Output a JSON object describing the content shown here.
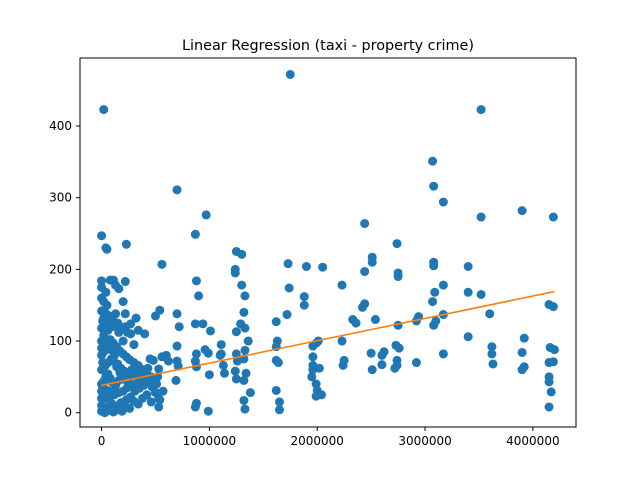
{
  "chart_data": {
    "type": "scatter",
    "title": "Linear Regression (taxi - property crime)",
    "xlabel": "",
    "ylabel": "",
    "xlim": [
      -200000,
      4400000
    ],
    "ylim": [
      -20,
      495
    ],
    "xticks": [
      0,
      1000000,
      2000000,
      3000000,
      4000000
    ],
    "xtick_labels": [
      "0",
      "1000000",
      "2000000",
      "3000000",
      "4000000"
    ],
    "yticks": [
      0,
      100,
      200,
      300,
      400
    ],
    "ytick_labels": [
      "0",
      "100",
      "200",
      "300",
      "400"
    ],
    "grid": false,
    "legend": "none",
    "colors": {
      "points": "#1f77b4",
      "line": "#ff7f0e"
    },
    "series": [
      {
        "kind": "scatter",
        "points": [
          [
            20000,
            423
          ],
          [
            3520000,
            423
          ],
          [
            1750000,
            472
          ],
          [
            700000,
            311
          ],
          [
            970000,
            276
          ],
          [
            3900000,
            282
          ],
          [
            4190000,
            273
          ],
          [
            3520000,
            273
          ],
          [
            3070000,
            351
          ],
          [
            3080000,
            316
          ],
          [
            3170000,
            294
          ],
          [
            2440000,
            264
          ],
          [
            0,
            247
          ],
          [
            870000,
            249
          ],
          [
            40000,
            230
          ],
          [
            50000,
            228
          ],
          [
            230000,
            235
          ],
          [
            1250000,
            225
          ],
          [
            1300000,
            221
          ],
          [
            1240000,
            200
          ],
          [
            1240000,
            195
          ],
          [
            2510000,
            217
          ],
          [
            2510000,
            210
          ],
          [
            2740000,
            236
          ],
          [
            2750000,
            195
          ],
          [
            2750000,
            190
          ],
          [
            1730000,
            208
          ],
          [
            1900000,
            204
          ],
          [
            2050000,
            203
          ],
          [
            2440000,
            197
          ],
          [
            3080000,
            210
          ],
          [
            3080000,
            205
          ],
          [
            3400000,
            204
          ],
          [
            3090000,
            168
          ],
          [
            3170000,
            178
          ],
          [
            3400000,
            168
          ],
          [
            3520000,
            165
          ],
          [
            560000,
            207
          ],
          [
            880000,
            184
          ],
          [
            1740000,
            174
          ],
          [
            1880000,
            162
          ],
          [
            2230000,
            178
          ],
          [
            1300000,
            178
          ],
          [
            1330000,
            163
          ],
          [
            2440000,
            152
          ],
          [
            2420000,
            147
          ],
          [
            3070000,
            155
          ],
          [
            3170000,
            137
          ],
          [
            4150000,
            151
          ],
          [
            4190000,
            148
          ],
          [
            0,
            184
          ],
          [
            0,
            175
          ],
          [
            80000,
            185
          ],
          [
            110000,
            185
          ],
          [
            130000,
            178
          ],
          [
            160000,
            173
          ],
          [
            220000,
            183
          ],
          [
            40000,
            168
          ],
          [
            20000,
            155
          ],
          [
            200000,
            155
          ],
          [
            540000,
            143
          ],
          [
            900000,
            163
          ],
          [
            1320000,
            140
          ],
          [
            1620000,
            127
          ],
          [
            1720000,
            137
          ],
          [
            1880000,
            150
          ],
          [
            1250000,
            113
          ],
          [
            1290000,
            124
          ],
          [
            1330000,
            118
          ],
          [
            1010000,
            114
          ],
          [
            940000,
            124
          ],
          [
            870000,
            124
          ],
          [
            720000,
            120
          ],
          [
            700000,
            138
          ],
          [
            500000,
            135
          ],
          [
            320000,
            132
          ],
          [
            270000,
            124
          ],
          [
            220000,
            138
          ],
          [
            130000,
            138
          ],
          [
            60000,
            136
          ],
          [
            0,
            142
          ],
          [
            2330000,
            130
          ],
          [
            2360000,
            125
          ],
          [
            2540000,
            130
          ],
          [
            2750000,
            122
          ],
          [
            2920000,
            128
          ],
          [
            2940000,
            134
          ],
          [
            3080000,
            122
          ],
          [
            3100000,
            128
          ],
          [
            3600000,
            138
          ],
          [
            3400000,
            106
          ],
          [
            3920000,
            104
          ],
          [
            3900000,
            84
          ],
          [
            3920000,
            64
          ],
          [
            3900000,
            60
          ],
          [
            4160000,
            91
          ],
          [
            4200000,
            88
          ],
          [
            4150000,
            70
          ],
          [
            4190000,
            71
          ],
          [
            4150000,
            50
          ],
          [
            4150000,
            43
          ],
          [
            4170000,
            29
          ],
          [
            4150000,
            8
          ],
          [
            3620000,
            92
          ],
          [
            3620000,
            82
          ],
          [
            3630000,
            68
          ],
          [
            3170000,
            82
          ],
          [
            2920000,
            70
          ],
          [
            2730000,
            94
          ],
          [
            2760000,
            90
          ],
          [
            2740000,
            73
          ],
          [
            2740000,
            66
          ],
          [
            2720000,
            62
          ],
          [
            2620000,
            85
          ],
          [
            2600000,
            80
          ],
          [
            2600000,
            67
          ],
          [
            2500000,
            83
          ],
          [
            2510000,
            60
          ],
          [
            2250000,
            73
          ],
          [
            2240000,
            66
          ],
          [
            2230000,
            100
          ],
          [
            1990000,
            97
          ],
          [
            2010000,
            100
          ],
          [
            1960000,
            93
          ],
          [
            1960000,
            78
          ],
          [
            1960000,
            66
          ],
          [
            1960000,
            60
          ],
          [
            1950000,
            50
          ],
          [
            2020000,
            62
          ],
          [
            1990000,
            40
          ],
          [
            2000000,
            31
          ],
          [
            2040000,
            25
          ],
          [
            1990000,
            23
          ],
          [
            1630000,
            100
          ],
          [
            1620000,
            92
          ],
          [
            1620000,
            73
          ],
          [
            1640000,
            70
          ],
          [
            1620000,
            31
          ],
          [
            1650000,
            15
          ],
          [
            1650000,
            4
          ],
          [
            1360000,
            100
          ],
          [
            1330000,
            87
          ],
          [
            1320000,
            75
          ],
          [
            1340000,
            55
          ],
          [
            1320000,
            45
          ],
          [
            1380000,
            28
          ],
          [
            1320000,
            17
          ],
          [
            1330000,
            5
          ],
          [
            1260000,
            72
          ],
          [
            1240000,
            58
          ],
          [
            1250000,
            47
          ],
          [
            1110000,
            82
          ],
          [
            1140000,
            55
          ],
          [
            1100000,
            80
          ],
          [
            990000,
            83
          ],
          [
            960000,
            88
          ],
          [
            880000,
            82
          ],
          [
            870000,
            72
          ],
          [
            880000,
            64
          ],
          [
            880000,
            13
          ],
          [
            870000,
            8
          ],
          [
            990000,
            2
          ],
          [
            700000,
            93
          ],
          [
            700000,
            72
          ],
          [
            710000,
            65
          ],
          [
            690000,
            45
          ],
          [
            1000000,
            53
          ],
          [
            1110000,
            95
          ],
          [
            1130000,
            66
          ],
          [
            1250000,
            82
          ],
          [
            560000,
            78
          ],
          [
            530000,
            61
          ],
          [
            520000,
            50
          ],
          [
            570000,
            30
          ],
          [
            530000,
            20
          ],
          [
            530000,
            8
          ],
          [
            620000,
            72
          ],
          [
            600000,
            80
          ],
          [
            480000,
            73
          ],
          [
            450000,
            75
          ],
          [
            430000,
            62
          ],
          [
            400000,
            110
          ],
          [
            340000,
            115
          ],
          [
            300000,
            95
          ],
          [
            270000,
            110
          ],
          [
            220000,
            120
          ],
          [
            200000,
            100
          ],
          [
            160000,
            112
          ],
          [
            120000,
            120
          ],
          [
            90000,
            125
          ],
          [
            60000,
            115
          ],
          [
            30000,
            122
          ],
          [
            10000,
            128
          ],
          [
            0,
            118
          ],
          [
            20000,
            108
          ],
          [
            0,
            100
          ],
          [
            40000,
            95
          ],
          [
            80000,
            102
          ],
          [
            110000,
            97
          ],
          [
            140000,
            92
          ],
          [
            170000,
            86
          ],
          [
            200000,
            82
          ],
          [
            230000,
            78
          ],
          [
            260000,
            74
          ],
          [
            300000,
            70
          ],
          [
            340000,
            66
          ],
          [
            380000,
            60
          ],
          [
            420000,
            55
          ],
          [
            460000,
            50
          ],
          [
            500000,
            45
          ],
          [
            360000,
            45
          ],
          [
            320000,
            40
          ],
          [
            280000,
            38
          ],
          [
            240000,
            35
          ],
          [
            200000,
            30
          ],
          [
            160000,
            28
          ],
          [
            120000,
            25
          ],
          [
            80000,
            22
          ],
          [
            40000,
            20
          ],
          [
            0,
            20
          ],
          [
            0,
            10
          ],
          [
            20000,
            5
          ],
          [
            60000,
            8
          ],
          [
            100000,
            12
          ],
          [
            140000,
            8
          ],
          [
            180000,
            14
          ],
          [
            220000,
            10
          ],
          [
            260000,
            6
          ],
          [
            300000,
            16
          ],
          [
            340000,
            12
          ],
          [
            380000,
            20
          ],
          [
            420000,
            25
          ],
          [
            460000,
            15
          ],
          [
            500000,
            28
          ],
          [
            540000,
            18
          ],
          [
            0,
            2
          ],
          [
            30000,
            0
          ],
          [
            70000,
            3
          ],
          [
            110000,
            1
          ],
          [
            150000,
            4
          ],
          [
            190000,
            2
          ],
          [
            230000,
            18
          ],
          [
            270000,
            22
          ],
          [
            310000,
            30
          ],
          [
            350000,
            34
          ],
          [
            390000,
            38
          ],
          [
            430000,
            42
          ],
          [
            470000,
            36
          ],
          [
            510000,
            40
          ],
          [
            0,
            60
          ],
          [
            30000,
            65
          ],
          [
            60000,
            70
          ],
          [
            90000,
            75
          ],
          [
            120000,
            80
          ],
          [
            150000,
            68
          ],
          [
            180000,
            62
          ],
          [
            210000,
            58
          ],
          [
            240000,
            54
          ],
          [
            270000,
            50
          ],
          [
            0,
            80
          ],
          [
            20000,
            85
          ],
          [
            50000,
            90
          ],
          [
            80000,
            88
          ],
          [
            110000,
            72
          ],
          [
            140000,
            64
          ],
          [
            170000,
            56
          ],
          [
            0,
            40
          ],
          [
            20000,
            44
          ],
          [
            40000,
            50
          ],
          [
            60000,
            54
          ],
          [
            80000,
            48
          ],
          [
            100000,
            42
          ],
          [
            130000,
            38
          ],
          [
            160000,
            45
          ],
          [
            190000,
            50
          ],
          [
            220000,
            46
          ],
          [
            250000,
            42
          ],
          [
            280000,
            60
          ],
          [
            310000,
            55
          ],
          [
            340000,
            50
          ],
          [
            370000,
            52
          ],
          [
            400000,
            48
          ],
          [
            30000,
            140
          ],
          [
            50000,
            150
          ],
          [
            0,
            160
          ],
          [
            20000,
            132
          ],
          [
            100000,
            130
          ],
          [
            150000,
            125
          ],
          [
            190000,
            118
          ],
          [
            240000,
            112
          ],
          [
            0,
            90
          ],
          [
            10000,
            70
          ],
          [
            0,
            30
          ],
          [
            10000,
            35
          ],
          [
            40000,
            32
          ],
          [
            70000,
            30
          ],
          [
            90000,
            28
          ]
        ]
      },
      {
        "kind": "line",
        "points": [
          [
            0,
            38
          ],
          [
            4200000,
            169
          ]
        ]
      }
    ]
  }
}
